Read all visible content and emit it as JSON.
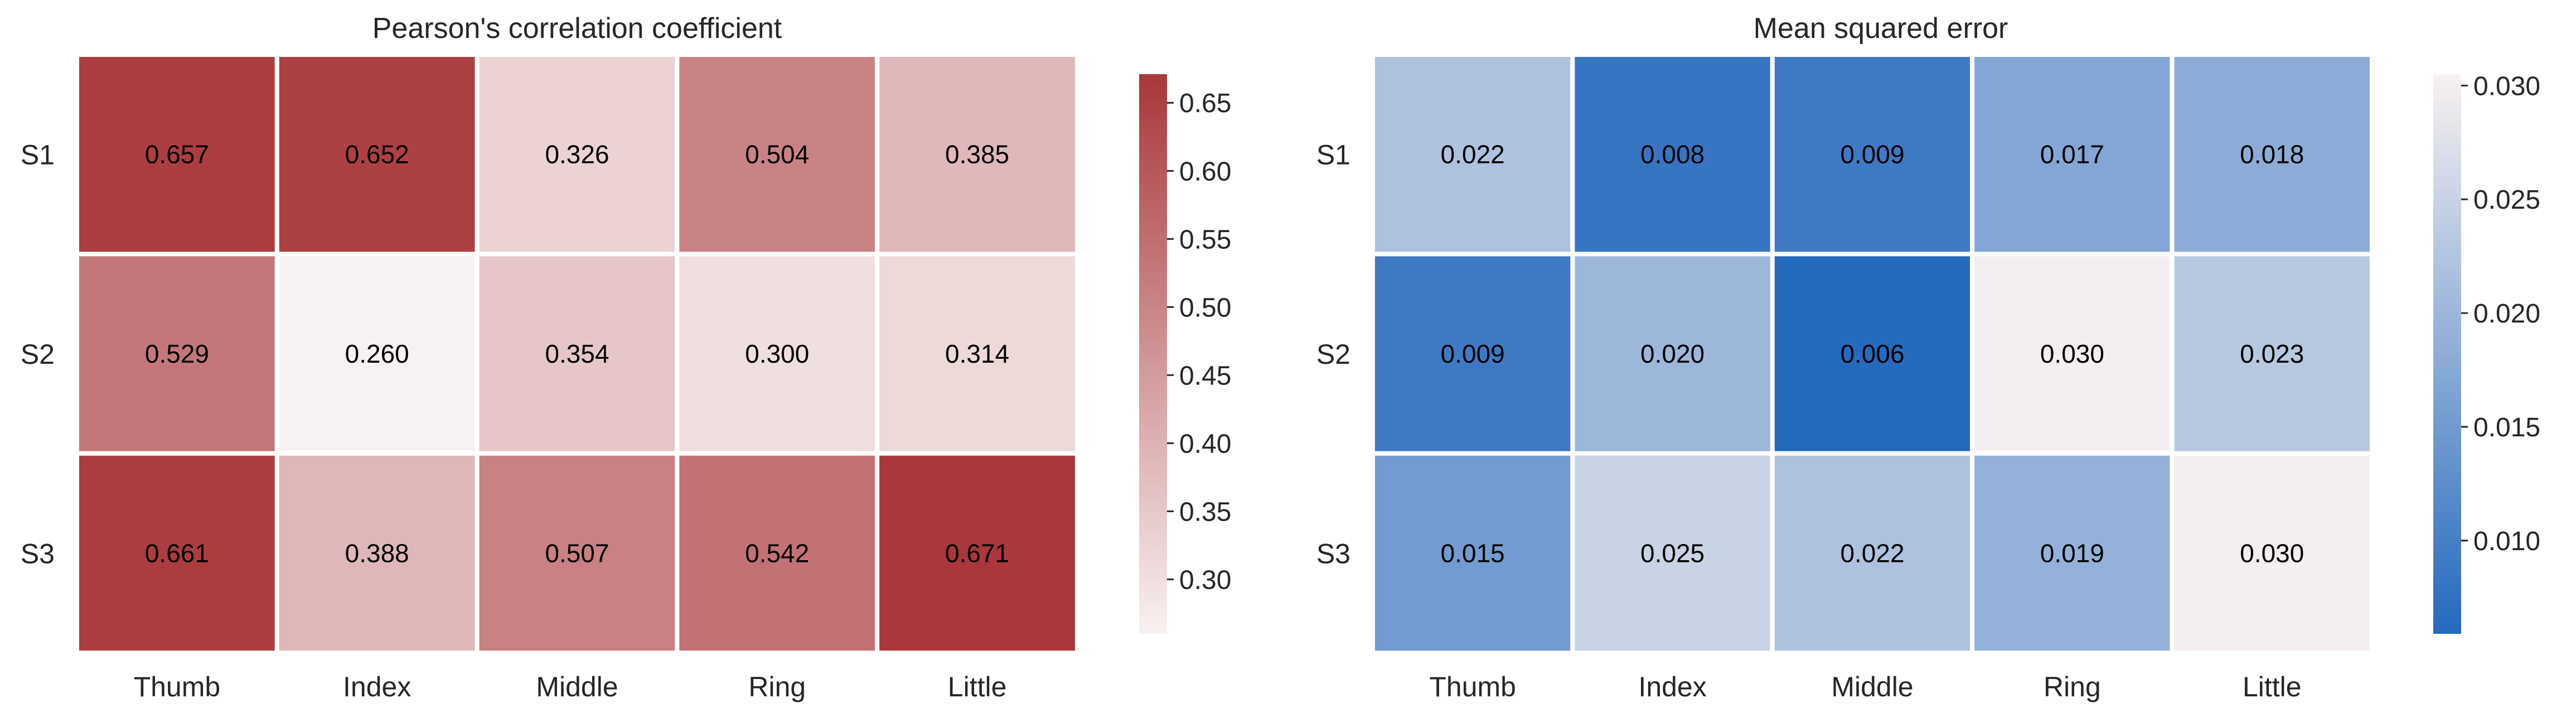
{
  "chart_data": [
    {
      "type": "heatmap",
      "title": "Pearson's correlation coefficient",
      "xlabel": "",
      "ylabel": "",
      "x_categories": [
        "Thumb",
        "Index",
        "Middle",
        "Ring",
        "Little"
      ],
      "y_categories": [
        "S1",
        "S2",
        "S3"
      ],
      "values": [
        [
          0.657,
          0.652,
          0.326,
          0.504,
          0.385
        ],
        [
          0.529,
          0.26,
          0.354,
          0.3,
          0.314
        ],
        [
          0.661,
          0.388,
          0.507,
          0.542,
          0.671
        ]
      ],
      "cell_labels": [
        [
          "0.657",
          "0.652",
          "0.326",
          "0.504",
          "0.385"
        ],
        [
          "0.529",
          "0.260",
          "0.354",
          "0.300",
          "0.314"
        ],
        [
          "0.661",
          "0.388",
          "0.507",
          "0.542",
          "0.671"
        ]
      ],
      "colormap": {
        "low": "#f8f1f1",
        "high": "#a9373b"
      },
      "colorbar": {
        "range": [
          0.26,
          0.671
        ],
        "ticks": [
          0.3,
          0.35,
          0.4,
          0.45,
          0.5,
          0.55,
          0.6,
          0.65
        ],
        "tick_labels": [
          "0.30",
          "0.35",
          "0.40",
          "0.45",
          "0.50",
          "0.55",
          "0.60",
          "0.65"
        ]
      },
      "grid": false
    },
    {
      "type": "heatmap",
      "title": "Mean squared error",
      "xlabel": "",
      "ylabel": "",
      "x_categories": [
        "Thumb",
        "Index",
        "Middle",
        "Ring",
        "Little"
      ],
      "y_categories": [
        "S1",
        "S2",
        "S3"
      ],
      "values": [
        [
          0.022,
          0.008,
          0.009,
          0.017,
          0.018
        ],
        [
          0.009,
          0.02,
          0.006,
          0.03,
          0.023
        ],
        [
          0.015,
          0.025,
          0.022,
          0.019,
          0.03
        ]
      ],
      "cell_labels": [
        [
          "0.022",
          "0.008",
          "0.009",
          "0.017",
          "0.018"
        ],
        [
          "0.009",
          "0.020",
          "0.006",
          "0.030",
          "0.023"
        ],
        [
          "0.015",
          "0.025",
          "0.022",
          "0.019",
          "0.030"
        ]
      ],
      "colormap": {
        "low": "#2369bd",
        "high": "#f8f1f1"
      },
      "colorbar": {
        "range": [
          0.0059,
          0.0305
        ],
        "ticks": [
          0.01,
          0.015,
          0.02,
          0.025,
          0.03
        ],
        "tick_labels": [
          "0.010",
          "0.015",
          "0.020",
          "0.025",
          "0.030"
        ]
      },
      "grid": false
    }
  ]
}
